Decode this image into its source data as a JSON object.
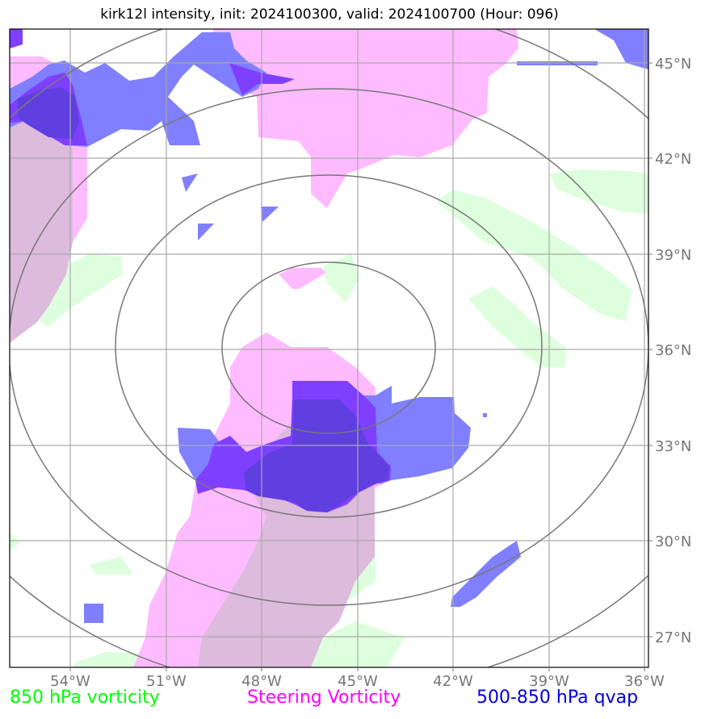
{
  "title": "kirk12l intensity, init: 2024100300, valid: 2024100700 (Hour: 096)",
  "map": {
    "lon_range": [
      -56,
      -36
    ],
    "lat_range": [
      26,
      46
    ],
    "lon_ticks": [
      -54,
      -51,
      -48,
      -45,
      -42,
      -39,
      -36
    ],
    "lat_ticks": [
      27,
      30,
      33,
      36,
      39,
      42,
      45
    ],
    "lon_labels": [
      "54°W",
      "51°W",
      "48°W",
      "45°W",
      "42°W",
      "39°W",
      "36°W"
    ],
    "lat_labels": [
      "27°N",
      "30°N",
      "33°N",
      "36°N",
      "39°N",
      "42°N",
      "45°N"
    ],
    "range_rings": 4,
    "colors": {
      "vorticity_850": "#ddffdd",
      "steering_vorticity": "#ffbbff",
      "qvap": "#6666ff",
      "overlap": "#ddbbdd",
      "grid": "#aaaaaa",
      "rings": "#777777"
    }
  },
  "legend": {
    "vort850": {
      "label": "850 hPa vorticity",
      "color": "#00ff00"
    },
    "steering": {
      "label": "Steering Vorticity",
      "color": "#ff00ff"
    },
    "qvap": {
      "label": "500-850 hPa qvap",
      "color": "#0000dd"
    }
  }
}
